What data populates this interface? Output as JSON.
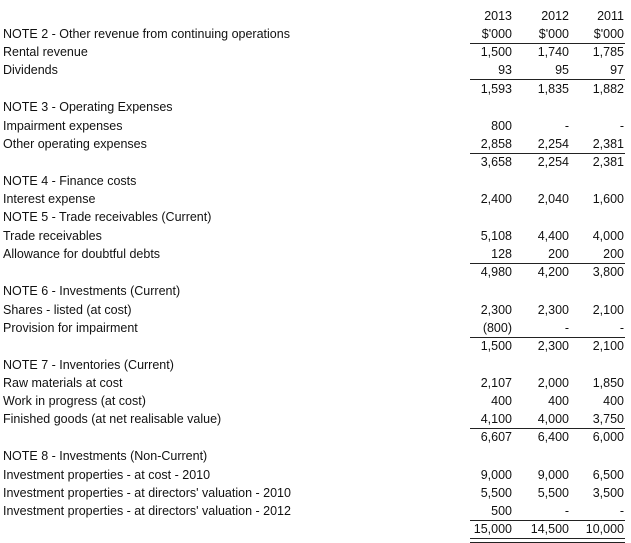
{
  "header": {
    "years": [
      "2013",
      "2012",
      "2011"
    ],
    "units": [
      "$'000",
      "$'000",
      "$'000"
    ]
  },
  "rows": [
    {
      "label": "NOTE 2 - Other revenue from continuing operations",
      "values": [
        "",
        "",
        ""
      ]
    },
    {
      "label": "Rental revenue",
      "values": [
        "1,500",
        "1,740",
        "1,785"
      ]
    },
    {
      "label": "Dividends",
      "values": [
        "93",
        "95",
        "97"
      ]
    },
    {
      "label": "",
      "values": [
        "1,593",
        "1,835",
        "1,882"
      ]
    },
    {
      "label": "NOTE 3 - Operating Expenses",
      "values": [
        "",
        "",
        ""
      ]
    },
    {
      "label": "Impairment expenses",
      "values": [
        "800",
        "-",
        "-"
      ]
    },
    {
      "label": "Other operating expenses",
      "values": [
        "2,858",
        "2,254",
        "2,381"
      ]
    },
    {
      "label": "",
      "values": [
        "3,658",
        "2,254",
        "2,381"
      ]
    },
    {
      "label": "NOTE 4 - Finance costs",
      "values": [
        "",
        "",
        ""
      ]
    },
    {
      "label": "Interest expense",
      "values": [
        "2,400",
        "2,040",
        "1,600"
      ]
    },
    {
      "label": "NOTE 5 - Trade receivables (Current)",
      "values": [
        "",
        "",
        ""
      ]
    },
    {
      "label": "Trade receivables",
      "values": [
        "5,108",
        "4,400",
        "4,000"
      ]
    },
    {
      "label": "Allowance for doubtful debts",
      "values": [
        "128",
        "200",
        "200"
      ]
    },
    {
      "label": "",
      "values": [
        "4,980",
        "4,200",
        "3,800"
      ]
    },
    {
      "label": "NOTE 6 - Investments (Current)",
      "values": [
        "",
        "",
        ""
      ]
    },
    {
      "label": "Shares - listed (at cost)",
      "values": [
        "2,300",
        "2,300",
        "2,100"
      ]
    },
    {
      "label": "Provision for impairment",
      "values": [
        "(800)",
        "-",
        "-"
      ]
    },
    {
      "label": "",
      "values": [
        "1,500",
        "2,300",
        "2,100"
      ]
    },
    {
      "label": "NOTE 7 - Inventories (Current)",
      "values": [
        "",
        "",
        ""
      ]
    },
    {
      "label": "Raw materials at cost",
      "values": [
        "2,107",
        "2,000",
        "1,850"
      ]
    },
    {
      "label": "Work in progress (at cost)",
      "values": [
        "400",
        "400",
        "400"
      ]
    },
    {
      "label": "Finished goods (at net realisable value)",
      "values": [
        "4,100",
        "4,000",
        "3,750"
      ]
    },
    {
      "label": "",
      "values": [
        "6,607",
        "6,400",
        "6,000"
      ]
    },
    {
      "label": "NOTE 8 - Investments (Non-Current)",
      "values": [
        "",
        "",
        ""
      ]
    },
    {
      "label": "Investment properties - at cost - 2010",
      "values": [
        "9,000",
        "9,000",
        "6,500"
      ]
    },
    {
      "label": "Investment properties - at directors'  valuation - 2010",
      "values": [
        "5,500",
        "5,500",
        "3,500"
      ]
    },
    {
      "label": "Investment properties - at directors'  valuation - 2012",
      "values": [
        "500",
        "-",
        "-"
      ]
    },
    {
      "label": "",
      "values": [
        "15,000",
        "14,500",
        "10,000"
      ]
    }
  ]
}
